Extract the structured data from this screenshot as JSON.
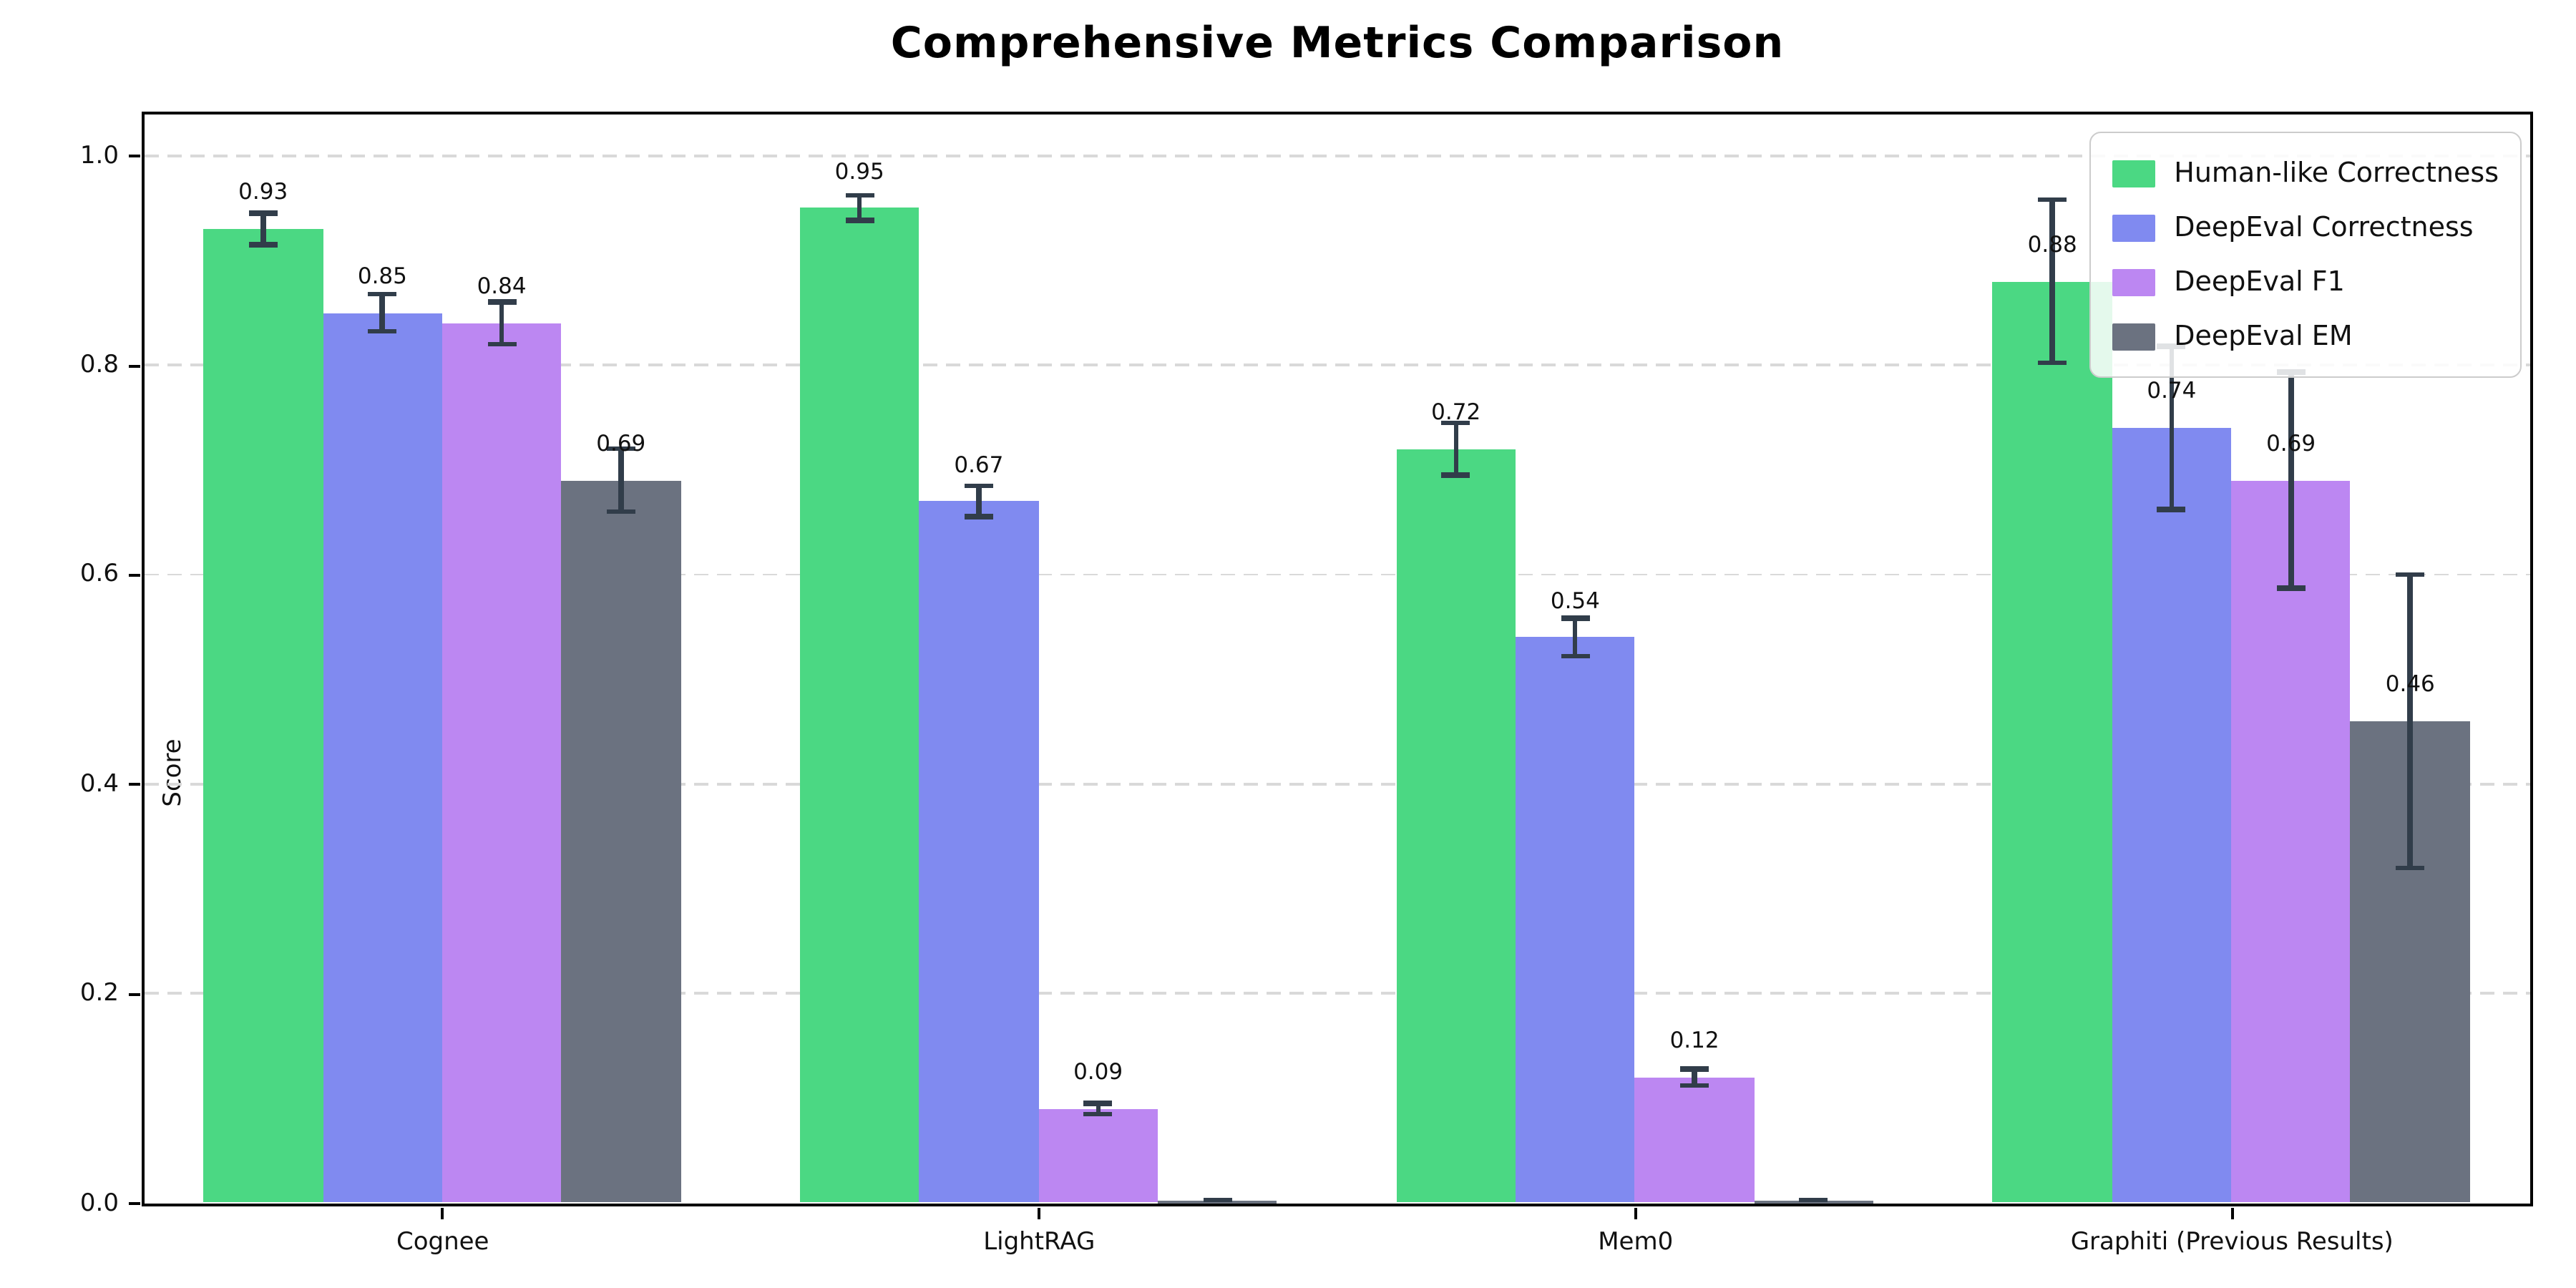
{
  "chart_data": {
    "type": "bar",
    "title": "Comprehensive Metrics Comparison",
    "ylabel": "Score",
    "categories": [
      "Cognee",
      "LightRAG",
      "Mem0",
      "Graphiti (Previous Results)"
    ],
    "series": [
      {
        "name": "Human-like Correctness",
        "color": "#4bd883",
        "values": [
          0.93,
          0.95,
          0.72,
          0.88
        ],
        "errors": [
          0.015,
          0.012,
          0.025,
          0.078
        ],
        "labels": [
          "0.93",
          "0.95",
          "0.72",
          "0.88"
        ]
      },
      {
        "name": "DeepEval Correctness",
        "color": "#808af0",
        "values": [
          0.85,
          0.67,
          0.54,
          0.74
        ],
        "errors": [
          0.018,
          0.015,
          0.018,
          0.078
        ],
        "labels": [
          "0.85",
          "0.67",
          "0.54",
          "0.74"
        ]
      },
      {
        "name": "DeepEval F1",
        "color": "#bc87f2",
        "values": [
          0.84,
          0.09,
          0.12,
          0.69
        ],
        "errors": [
          0.02,
          0.005,
          0.008,
          0.103
        ],
        "labels": [
          "0.84",
          "0.09",
          "0.12",
          "0.69"
        ]
      },
      {
        "name": "DeepEval EM",
        "color": "#6b7280",
        "values": [
          0.69,
          0.0,
          0.0,
          0.46
        ],
        "errors": [
          0.03,
          0.003,
          0.003,
          0.14
        ],
        "labels": [
          "0.69",
          null,
          null,
          "0.46"
        ]
      }
    ],
    "yticks": {
      "values": [
        0.0,
        0.2,
        0.4,
        0.6,
        0.8,
        1.0
      ],
      "labels": [
        "0.0",
        "0.2",
        "0.4",
        "0.6",
        "0.8",
        "1.0"
      ]
    },
    "ylim": [
      0,
      1.04
    ],
    "grid": {
      "axis": "y",
      "style": "dashed",
      "color": "#d9d9d9"
    },
    "legend": {
      "position": "upper right",
      "border_color": "#cccccc",
      "background": "rgba(255,255,255,0.85)"
    },
    "style": {
      "error_color": "#313d4a",
      "axis_color": "#000000",
      "text_color": "#111111"
    }
  }
}
